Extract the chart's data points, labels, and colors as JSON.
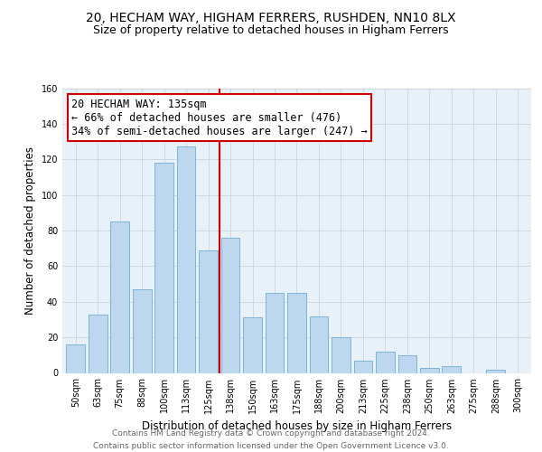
{
  "title": "20, HECHAM WAY, HIGHAM FERRERS, RUSHDEN, NN10 8LX",
  "subtitle": "Size of property relative to detached houses in Higham Ferrers",
  "xlabel": "Distribution of detached houses by size in Higham Ferrers",
  "ylabel": "Number of detached properties",
  "bar_labels": [
    "50sqm",
    "63sqm",
    "75sqm",
    "88sqm",
    "100sqm",
    "113sqm",
    "125sqm",
    "138sqm",
    "150sqm",
    "163sqm",
    "175sqm",
    "188sqm",
    "200sqm",
    "213sqm",
    "225sqm",
    "238sqm",
    "250sqm",
    "263sqm",
    "275sqm",
    "288sqm",
    "300sqm"
  ],
  "bar_values": [
    16,
    33,
    85,
    47,
    118,
    127,
    69,
    76,
    31,
    45,
    45,
    32,
    20,
    7,
    12,
    10,
    3,
    4,
    0,
    2,
    0
  ],
  "bar_color": "#bdd7ee",
  "bar_edge_color": "#7cb4d8",
  "annotation_title": "20 HECHAM WAY: 135sqm",
  "annotation_line1": "← 66% of detached houses are smaller (476)",
  "annotation_line2": "34% of semi-detached houses are larger (247) →",
  "vline_color": "#cc0000",
  "box_edge_color": "#cc0000",
  "ylim": [
    0,
    160
  ],
  "yticks": [
    0,
    20,
    40,
    60,
    80,
    100,
    120,
    140,
    160
  ],
  "footer_line1": "Contains HM Land Registry data © Crown copyright and database right 2024.",
  "footer_line2": "Contains public sector information licensed under the Open Government Licence v3.0.",
  "background_color": "#ffffff",
  "plot_bg_color": "#e8f0f8",
  "grid_color": "#c8d4e0",
  "title_fontsize": 10,
  "subtitle_fontsize": 9,
  "axis_label_fontsize": 8.5,
  "tick_fontsize": 7,
  "footer_fontsize": 6.5,
  "annotation_fontsize": 8.5
}
